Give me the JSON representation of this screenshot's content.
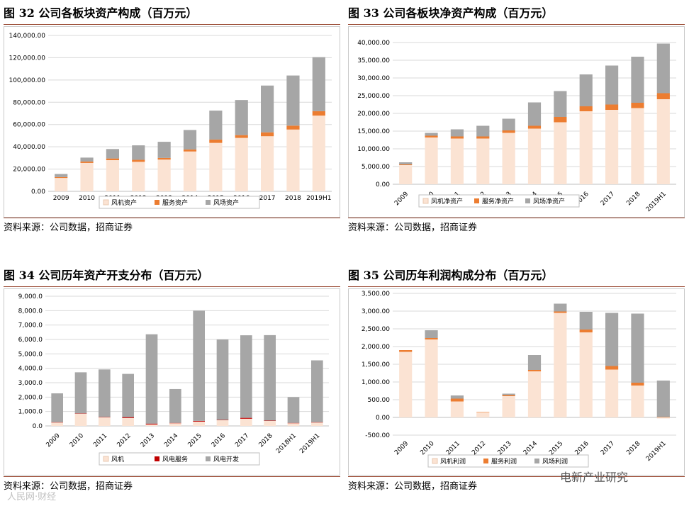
{
  "charts": [
    {
      "title": "图 32  公司各板块资产构成（百万元）",
      "source": "资料来源：公司数据，招商证券",
      "chart_data": {
        "type": "bar",
        "stacked": true,
        "categories": [
          "2009",
          "2010",
          "2011",
          "2012",
          "2013",
          "2014",
          "2015",
          "2016",
          "2017",
          "2018",
          "2019H1"
        ],
        "series": [
          {
            "name": "风机资产",
            "color": "#fbe3d3",
            "values": [
              12000,
              25500,
              28000,
              26500,
              28500,
              35800,
              43500,
              48000,
              49500,
              55500,
              68000
            ]
          },
          {
            "name": "服务资产",
            "color": "#ec7d31",
            "values": [
              800,
              1300,
              1500,
              1800,
              1500,
              1800,
              3000,
              2500,
              3500,
              3500,
              4000
            ]
          },
          {
            "name": "风场资产",
            "color": "#a6a6a6",
            "values": [
              2800,
              3500,
              8500,
              13000,
              14500,
              17500,
              26000,
              31500,
              42000,
              45000,
              48500
            ]
          }
        ],
        "ylim": [
          0,
          140000
        ],
        "yticks": [
          "0.00",
          "20,000.00",
          "40,000.00",
          "60,000.00",
          "80,000.00",
          "100,000.00",
          "120,000.00",
          "140,000.00"
        ],
        "ystep": 20000,
        "legend": "bottom",
        "xlabel_rotation": 0
      }
    },
    {
      "title": "图 33 公司各板块净资产构成（百万元）",
      "source": "资料来源：公司数据，招商证券",
      "chart_data": {
        "type": "bar",
        "stacked": true,
        "categories": [
          "2009",
          "2010",
          "2011",
          "2012",
          "2013",
          "2014",
          "2015",
          "2016",
          "2017",
          "2018",
          "2019H1"
        ],
        "series": [
          {
            "name": "风机净资产",
            "color": "#fbe3d3",
            "values": [
              5400,
              13200,
              12900,
              12900,
              14500,
              15700,
              17500,
              20600,
              21000,
              21500,
              24000
            ]
          },
          {
            "name": "服务净资产",
            "color": "#ec7d31",
            "values": [
              200,
              500,
              600,
              600,
              700,
              800,
              1500,
              1400,
              1500,
              1500,
              1700
            ]
          },
          {
            "name": "风场净资产",
            "color": "#a6a6a6",
            "values": [
              600,
              800,
              2000,
              3000,
              3300,
              6600,
              7300,
              9000,
              11000,
              13000,
              14000
            ]
          }
        ],
        "ylim": [
          0,
          40000
        ],
        "yticks": [
          "0.00",
          "5,000.00",
          "10,000.00",
          "15,000.00",
          "20,000.00",
          "25,000.00",
          "30,000.00",
          "35,000.00",
          "40,000.00"
        ],
        "ystep": 5000,
        "legend": "bottom",
        "xlabel_rotation": -45
      }
    },
    {
      "title": "图 34  公司历年资产开支分布（百万元）",
      "source": "资料来源：公司数据，招商证券",
      "chart_data": {
        "type": "bar",
        "stacked": true,
        "categories": [
          "2009",
          "2010",
          "2011",
          "2012",
          "2013",
          "2014",
          "2015",
          "2016",
          "2017",
          "2018",
          "2018H1",
          "2019H1"
        ],
        "series": [
          {
            "name": "风机",
            "color": "#fbe3d3",
            "values": [
              250,
              850,
              600,
              550,
              100,
              200,
              300,
              400,
              500,
              350,
              200,
              250
            ]
          },
          {
            "name": "风电服务",
            "color": "#c00000",
            "values": [
              10,
              20,
              20,
              60,
              60,
              10,
              50,
              20,
              60,
              20,
              10,
              10
            ]
          },
          {
            "name": "风电开发",
            "color": "#a6a6a6",
            "values": [
              2000,
              2850,
              3300,
              3000,
              6200,
              2350,
              7650,
              5580,
              5730,
              5930,
              1790,
              4290
            ]
          }
        ],
        "ylim": [
          0,
          9000
        ],
        "yticks": [
          "0.0",
          "1,000.0",
          "2,000.0",
          "3,000.0",
          "4,000.0",
          "5,000.0",
          "6,000.0",
          "7,000.0",
          "8,000.0",
          "9,000.0"
        ],
        "ystep": 1000,
        "legend": "bottom",
        "xlabel_rotation": -45
      }
    },
    {
      "title": "图 35  公司历年利润构成分布（百万元）",
      "source": "资料来源：公司数据，招商证券",
      "chart_data": {
        "type": "bar",
        "stacked": true,
        "categories": [
          "2009",
          "2010",
          "2011",
          "2012",
          "2013",
          "2014",
          "2015",
          "2016",
          "2017",
          "2018",
          "2019H1"
        ],
        "series": [
          {
            "name": "风机利润",
            "color": "#fbe3d3",
            "values": [
              1850,
              2200,
              450,
              150,
              600,
              1300,
              2950,
              2400,
              1350,
              900,
              -30
            ]
          },
          {
            "name": "服务利润",
            "color": "#ec7d31",
            "values": [
              50,
              40,
              80,
              10,
              30,
              40,
              40,
              80,
              100,
              80,
              10
            ]
          },
          {
            "name": "风场利润",
            "color": "#a6a6a6",
            "values": [
              0,
              220,
              90,
              0,
              40,
              420,
              220,
              500,
              1500,
              1950,
              1030
            ]
          }
        ],
        "ylim": [
          -500,
          3500
        ],
        "yticks": [
          "-500.00",
          "0.00",
          "500.00",
          "1,000.00",
          "1,500.00",
          "2,000.00",
          "2,500.00",
          "3,000.00",
          "3,500.00"
        ],
        "ystep": 500,
        "legend": "bottom",
        "xlabel_rotation": -45
      }
    }
  ],
  "watermarks": {
    "left": "人民网·财经",
    "right": "电新产业研究"
  }
}
